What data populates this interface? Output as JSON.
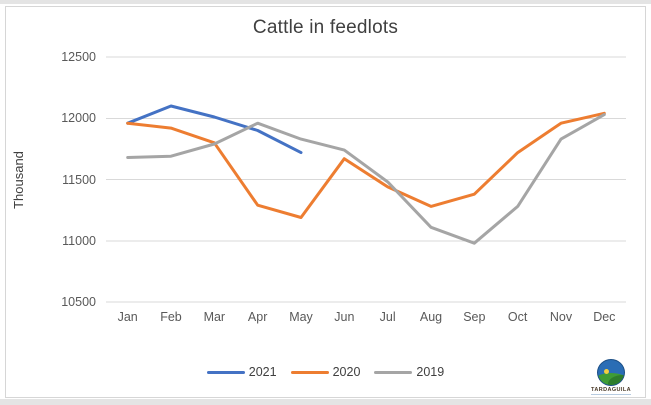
{
  "chart": {
    "title": "Cattle in feedlots",
    "y_axis_label": "Thousand"
  },
  "chart_data": {
    "type": "line",
    "title": "Cattle in feedlots",
    "xlabel": "",
    "ylabel": "Thousand",
    "categories": [
      "Jan",
      "Feb",
      "Mar",
      "Apr",
      "May",
      "Jun",
      "Jul",
      "Aug",
      "Sep",
      "Oct",
      "Nov",
      "Dec"
    ],
    "series": [
      {
        "name": "2021",
        "color": "#4472C4",
        "values": [
          11960,
          12100,
          12010,
          11900,
          11720,
          null,
          null,
          null,
          null,
          null,
          null,
          null
        ]
      },
      {
        "name": "2020",
        "color": "#ED7D31",
        "values": [
          11960,
          11920,
          11800,
          11290,
          11190,
          11670,
          11440,
          11280,
          11380,
          11720,
          11960,
          12040
        ]
      },
      {
        "name": "2019",
        "color": "#A5A5A5",
        "values": [
          11680,
          11690,
          11790,
          11960,
          11830,
          11740,
          11480,
          11110,
          10980,
          11280,
          11830,
          12030
        ]
      }
    ],
    "ylim": [
      10500,
      12500
    ],
    "y_ticks": [
      12500,
      12000,
      11500,
      11000,
      10500
    ],
    "grid": true,
    "gridline_color": "#d9d9d9",
    "legend_position": "bottom"
  },
  "logo": {
    "text": "TARDAGUILA"
  }
}
